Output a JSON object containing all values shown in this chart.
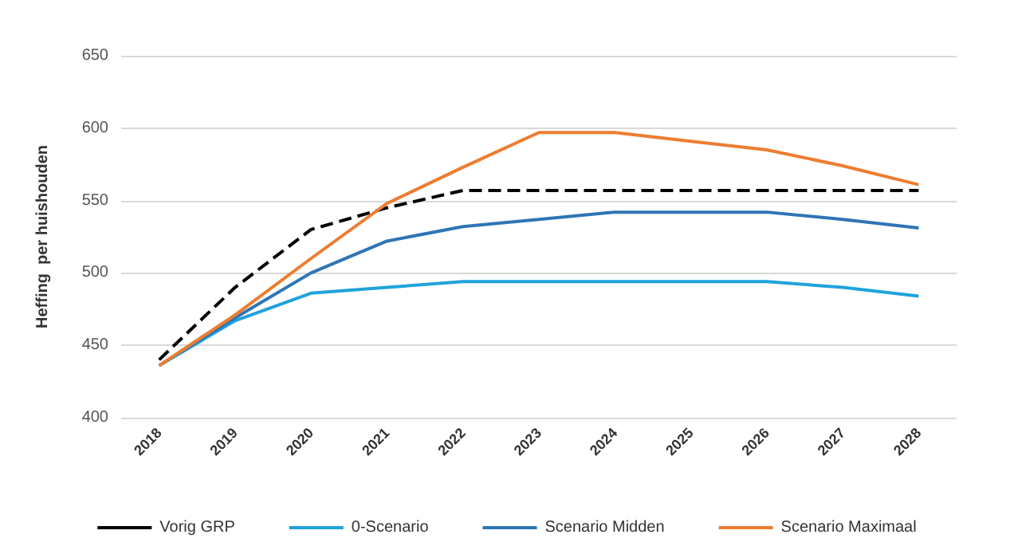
{
  "chart_data": {
    "type": "line",
    "ylabel": "Heffing  per huishouden",
    "categories": [
      "2018",
      "2019",
      "2020",
      "2021",
      "2022",
      "2023",
      "2024",
      "2025",
      "2026",
      "2027",
      "2028"
    ],
    "series": [
      {
        "name": "Vorig GRP",
        "color": "#000000",
        "line_style": "dashed",
        "values": [
          440,
          490,
          530,
          545,
          557,
          557,
          557,
          557,
          557,
          557,
          557
        ]
      },
      {
        "name": "0-Scenario",
        "color": "#1fa3dc",
        "values": [
          436,
          467,
          486,
          490,
          494,
          494,
          494,
          494,
          494,
          490,
          484
        ]
      },
      {
        "name": "Scenario Midden",
        "color": "#2e75b6",
        "values": [
          436,
          469,
          500,
          522,
          532,
          537,
          542,
          542,
          542,
          537,
          531
        ]
      },
      {
        "name": "Scenario Maximaal",
        "color": "#ed7d31",
        "values": [
          436,
          471,
          510,
          548,
          573,
          597,
          597,
          591,
          585,
          574,
          561
        ]
      }
    ],
    "ylim": [
      400,
      650
    ],
    "yticks": [
      400,
      450,
      500,
      550,
      600,
      650
    ],
    "grid": "y",
    "legend": "bottom",
    "marker": "none",
    "line_style": "solid"
  }
}
